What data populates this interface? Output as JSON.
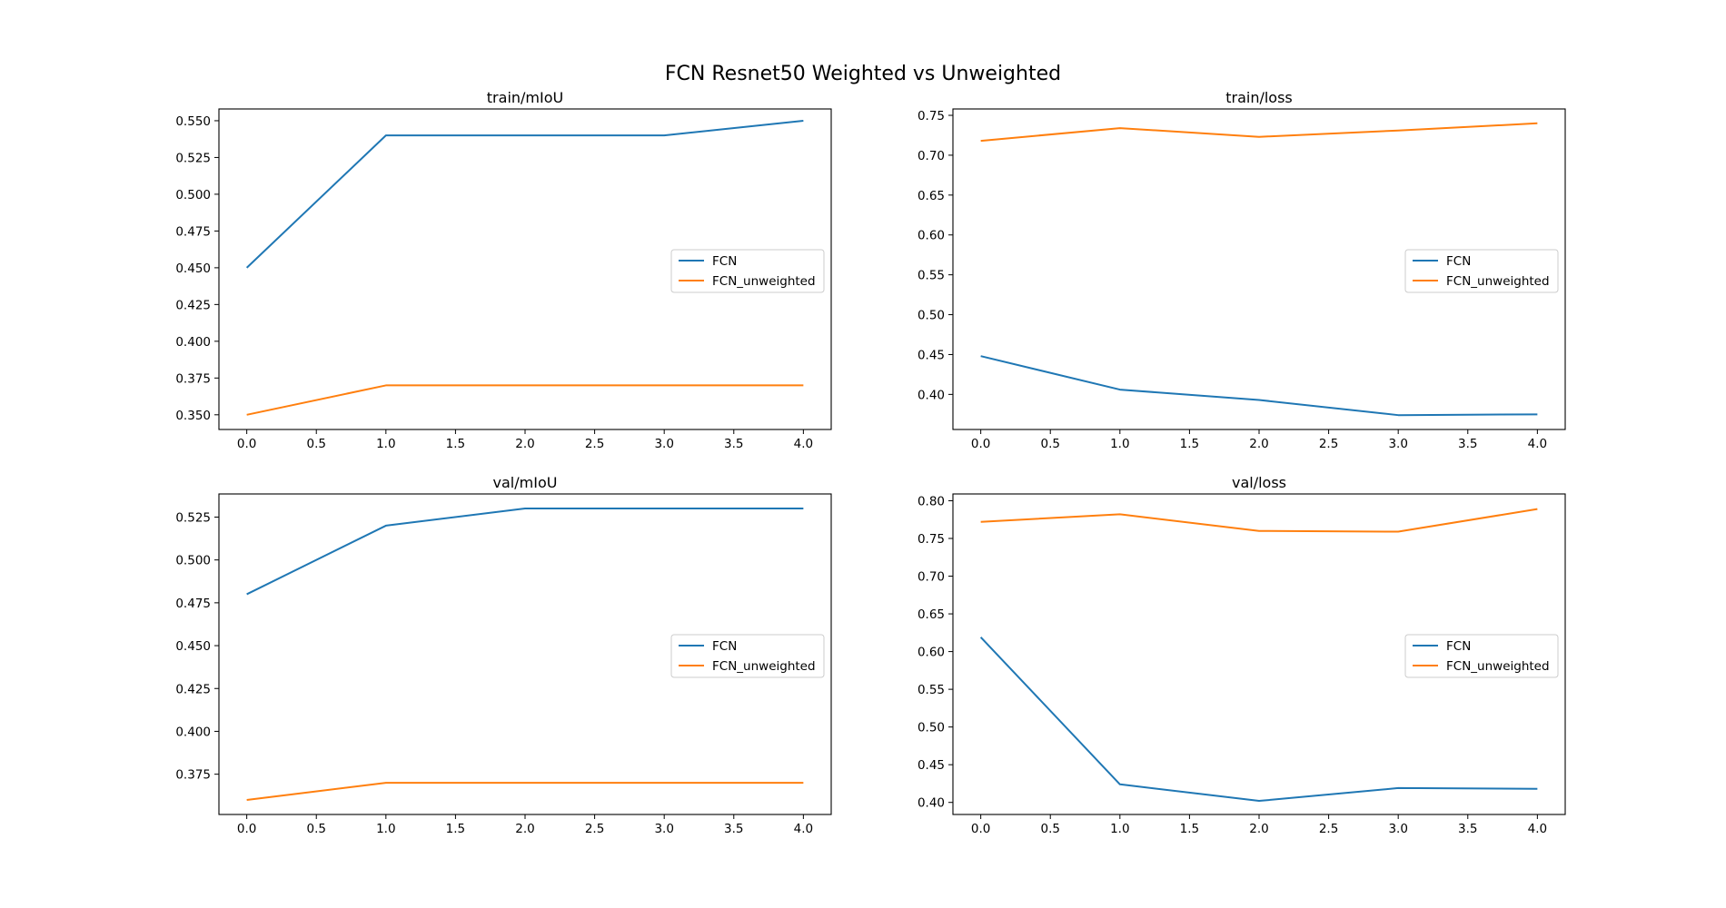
{
  "figure_title": "FCN Resnet50 Weighted vs Unweighted",
  "colors": {
    "FCN": "#1f77b4",
    "FCN_unweighted": "#ff7f0e"
  },
  "chart_data": [
    {
      "type": "line",
      "title": "train/mIoU",
      "xlabel": "",
      "ylabel": "",
      "x": [
        0,
        1,
        2,
        3,
        4
      ],
      "xlim": [
        -0.2,
        4.2
      ],
      "ylim": [
        0.34,
        0.558
      ],
      "xticks": [
        "0.0",
        "0.5",
        "1.0",
        "1.5",
        "2.0",
        "2.5",
        "3.0",
        "3.5",
        "4.0"
      ],
      "yticks": [
        "0.350",
        "0.375",
        "0.400",
        "0.425",
        "0.450",
        "0.475",
        "0.500",
        "0.525",
        "0.550"
      ],
      "series": [
        {
          "name": "FCN",
          "values": [
            0.45,
            0.54,
            0.54,
            0.54,
            0.55
          ]
        },
        {
          "name": "FCN_unweighted",
          "values": [
            0.35,
            0.37,
            0.37,
            0.37,
            0.37
          ]
        }
      ],
      "legend": "center-right",
      "grid": false
    },
    {
      "type": "line",
      "title": "train/loss",
      "xlabel": "",
      "ylabel": "",
      "x": [
        0,
        1,
        2,
        3,
        4
      ],
      "xlim": [
        -0.2,
        4.2
      ],
      "ylim": [
        0.356,
        0.758
      ],
      "xticks": [
        "0.0",
        "0.5",
        "1.0",
        "1.5",
        "2.0",
        "2.5",
        "3.0",
        "3.5",
        "4.0"
      ],
      "yticks": [
        "0.40",
        "0.45",
        "0.50",
        "0.55",
        "0.60",
        "0.65",
        "0.70",
        "0.75"
      ],
      "series": [
        {
          "name": "FCN",
          "values": [
            0.448,
            0.406,
            0.393,
            0.374,
            0.375
          ]
        },
        {
          "name": "FCN_unweighted",
          "values": [
            0.718,
            0.734,
            0.723,
            0.731,
            0.74
          ]
        }
      ],
      "legend": "center-right",
      "grid": false
    },
    {
      "type": "line",
      "title": "val/mIoU",
      "xlabel": "",
      "ylabel": "",
      "x": [
        0,
        1,
        2,
        3,
        4
      ],
      "xlim": [
        -0.2,
        4.2
      ],
      "ylim": [
        0.3515,
        0.5385
      ],
      "xticks": [
        "0.0",
        "0.5",
        "1.0",
        "1.5",
        "2.0",
        "2.5",
        "3.0",
        "3.5",
        "4.0"
      ],
      "yticks": [
        "0.375",
        "0.400",
        "0.425",
        "0.450",
        "0.475",
        "0.500",
        "0.525"
      ],
      "series": [
        {
          "name": "FCN",
          "values": [
            0.48,
            0.52,
            0.53,
            0.53,
            0.53
          ]
        },
        {
          "name": "FCN_unweighted",
          "values": [
            0.36,
            0.37,
            0.37,
            0.37,
            0.37
          ]
        }
      ],
      "legend": "center-right",
      "grid": false
    },
    {
      "type": "line",
      "title": "val/loss",
      "xlabel": "",
      "ylabel": "",
      "x": [
        0,
        1,
        2,
        3,
        4
      ],
      "xlim": [
        -0.2,
        4.2
      ],
      "ylim": [
        0.384,
        0.809
      ],
      "xticks": [
        "0.0",
        "0.5",
        "1.0",
        "1.5",
        "2.0",
        "2.5",
        "3.0",
        "3.5",
        "4.0"
      ],
      "yticks": [
        "0.40",
        "0.45",
        "0.50",
        "0.55",
        "0.60",
        "0.65",
        "0.70",
        "0.75",
        "0.80"
      ],
      "series": [
        {
          "name": "FCN",
          "values": [
            0.619,
            0.424,
            0.402,
            0.419,
            0.418
          ]
        },
        {
          "name": "FCN_unweighted",
          "values": [
            0.772,
            0.782,
            0.76,
            0.759,
            0.789
          ]
        }
      ],
      "legend": "center-right",
      "grid": false
    }
  ]
}
